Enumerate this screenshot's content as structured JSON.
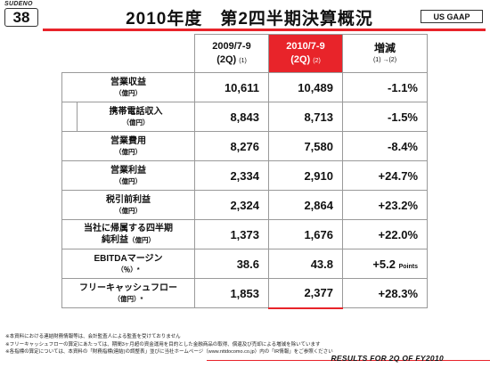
{
  "header": {
    "brand": "SUDENO",
    "page_number": "38",
    "title": "2010年度　第2四半期決算概況",
    "gaap": "US GAAP"
  },
  "colors": {
    "accent": "#e8242a"
  },
  "table": {
    "columns": {
      "prior": {
        "period": "2009/7-9",
        "quarter": "(2Q)",
        "note": "(1)"
      },
      "current": {
        "period": "2010/7-9",
        "quarter": "(2Q)",
        "note": "(2)"
      },
      "change": {
        "title": "増減",
        "formula": "(1) →(2)"
      }
    },
    "rows": [
      {
        "label": "営業収益",
        "unit": "（億円）",
        "prior": "10,611",
        "current": "10,489",
        "change": "-1.1%"
      },
      {
        "label": "携帯電話収入",
        "unit": "（億円）",
        "prior": "8,843",
        "current": "8,713",
        "change": "-1.5%"
      },
      {
        "label": "営業費用",
        "unit": "（億円）",
        "prior": "8,276",
        "current": "7,580",
        "change": "-8.4%"
      },
      {
        "label": "営業利益",
        "unit": "（億円）",
        "prior": "2,334",
        "current": "2,910",
        "change": "+24.7%"
      },
      {
        "label": "税引前利益",
        "unit": "（億円）",
        "prior": "2,324",
        "current": "2,864",
        "change": "+23.2%"
      },
      {
        "label": "当社に帰属する四半期",
        "label2": "純利益",
        "unit": "（億円）",
        "prior": "1,373",
        "current": "1,676",
        "change": "+22.0%"
      },
      {
        "label": "EBITDAマージン",
        "unit": "（％）*",
        "prior": "38.6",
        "current": "43.8",
        "change": "+5.2",
        "change_unit": "Points"
      },
      {
        "label": "フリーキャッシュフロー",
        "unit": "（億円）*",
        "prior": "1,853",
        "current": "2,377",
        "change": "+28.3%"
      }
    ]
  },
  "notes": [
    "※本資料における連結財務情報等は、会計監査人による監査を受けておりません",
    "※フリーキャッシュフローの算定にあたっては、期間3ヶ月超の資金運用を目的とした金融商品の取得、償還及び売却による増減を除いています",
    "※各指標の算定については、本資料の「財務指標(連結)の調整表」並びに当社ホームページ（www.nttdocomo.co.jp）内の「IR情報」をご参照ください"
  ],
  "footer": "RESULTS FOR 2Q OF FY2010"
}
